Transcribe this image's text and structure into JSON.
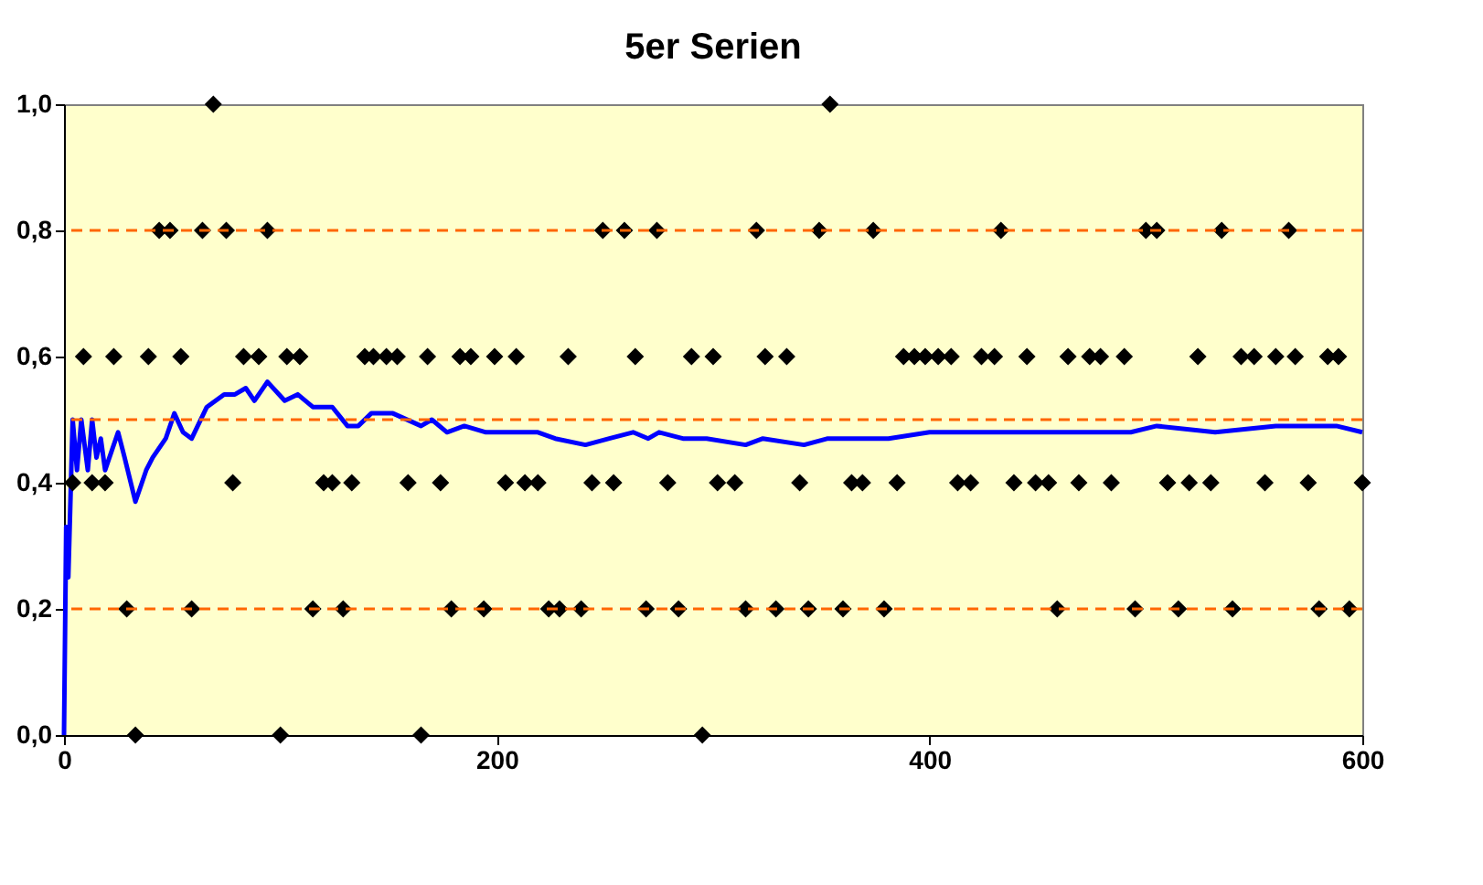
{
  "chart_data": {
    "type": "scatter",
    "title": "5er Serien",
    "xlim": [
      0,
      600
    ],
    "xticks": [
      0,
      200,
      400,
      600
    ],
    "ylim": [
      0,
      1
    ],
    "yticks": [
      {
        "value": 0,
        "label": "0,0"
      },
      {
        "value": 0.2,
        "label": "0,2"
      },
      {
        "value": 0.4,
        "label": "0,4"
      },
      {
        "value": 0.6,
        "label": "0,6"
      },
      {
        "value": 0.8,
        "label": "0,8"
      },
      {
        "value": 1,
        "label": "1,0"
      }
    ],
    "grid": false,
    "ref_lines": [
      {
        "axis": "y",
        "value": 0.2,
        "color": "#ff6600",
        "line_style": "dashed"
      },
      {
        "axis": "y",
        "value": 0.5,
        "color": "#ff6600",
        "line_style": "dashed"
      },
      {
        "axis": "y",
        "value": 0.8,
        "color": "#ff6600",
        "line_style": "dashed"
      }
    ],
    "series": [
      {
        "color": "#000000",
        "marker": "diamond",
        "x": [
          69,
          354,
          44,
          49,
          64,
          75,
          94,
          249,
          259,
          274,
          320,
          349,
          374,
          433,
          500,
          505,
          535,
          566,
          9,
          23,
          39,
          54,
          83,
          90,
          103,
          109,
          139,
          143,
          149,
          154,
          168,
          183,
          188,
          199,
          209,
          233,
          264,
          290,
          300,
          324,
          334,
          388,
          393,
          398,
          404,
          410,
          424,
          430,
          445,
          464,
          474,
          479,
          490,
          524,
          544,
          550,
          560,
          569,
          584,
          589,
          4,
          13,
          19,
          78,
          120,
          124,
          133,
          159,
          174,
          204,
          213,
          219,
          244,
          254,
          279,
          302,
          310,
          340,
          364,
          369,
          385,
          413,
          419,
          439,
          449,
          455,
          469,
          484,
          510,
          520,
          530,
          555,
          575,
          600,
          29,
          59,
          115,
          129,
          179,
          194,
          224,
          229,
          239,
          269,
          284,
          315,
          329,
          344,
          360,
          379,
          459,
          495,
          515,
          540,
          580,
          594,
          33,
          100,
          165,
          295
        ],
        "values": [
          1,
          1,
          0.8,
          0.8,
          0.8,
          0.8,
          0.8,
          0.8,
          0.8,
          0.8,
          0.8,
          0.8,
          0.8,
          0.8,
          0.8,
          0.8,
          0.8,
          0.8,
          0.6,
          0.6,
          0.6,
          0.6,
          0.6,
          0.6,
          0.6,
          0.6,
          0.6,
          0.6,
          0.6,
          0.6,
          0.6,
          0.6,
          0.6,
          0.6,
          0.6,
          0.6,
          0.6,
          0.6,
          0.6,
          0.6,
          0.6,
          0.6,
          0.6,
          0.6,
          0.6,
          0.6,
          0.6,
          0.6,
          0.6,
          0.6,
          0.6,
          0.6,
          0.6,
          0.6,
          0.6,
          0.6,
          0.6,
          0.6,
          0.6,
          0.6,
          0.4,
          0.4,
          0.4,
          0.4,
          0.4,
          0.4,
          0.4,
          0.4,
          0.4,
          0.4,
          0.4,
          0.4,
          0.4,
          0.4,
          0.4,
          0.4,
          0.4,
          0.4,
          0.4,
          0.4,
          0.4,
          0.4,
          0.4,
          0.4,
          0.4,
          0.4,
          0.4,
          0.4,
          0.4,
          0.4,
          0.4,
          0.4,
          0.4,
          0.4,
          0.2,
          0.2,
          0.2,
          0.2,
          0.2,
          0.2,
          0.2,
          0.2,
          0.2,
          0.2,
          0.2,
          0.2,
          0.2,
          0.2,
          0.2,
          0.2,
          0.2,
          0.2,
          0.2,
          0.2,
          0.2,
          0.2,
          0,
          0,
          0,
          0
        ]
      },
      {
        "type": "line",
        "color": "#0000ff",
        "marker": "none",
        "line_style": "solid",
        "x": [
          0,
          1,
          2,
          4,
          6,
          8,
          11,
          13,
          15,
          17,
          19,
          21,
          25,
          28,
          33,
          38,
          41,
          47,
          51,
          55,
          59,
          66,
          74,
          79,
          84,
          88,
          94,
          102,
          108,
          115,
          124,
          131,
          136,
          142,
          152,
          165,
          170,
          177,
          185,
          195,
          211,
          219,
          227,
          241,
          252,
          263,
          270,
          275,
          286,
          297,
          315,
          323,
          342,
          353,
          381,
          400,
          428,
          431,
          452,
          460,
          476,
          493,
          505,
          532,
          560,
          568,
          588,
          600
        ],
        "values": [
          0,
          0.33,
          0.25,
          0.5,
          0.42,
          0.5,
          0.42,
          0.5,
          0.44,
          0.47,
          0.42,
          0.44,
          0.48,
          0.44,
          0.37,
          0.42,
          0.44,
          0.47,
          0.51,
          0.48,
          0.47,
          0.52,
          0.54,
          0.54,
          0.55,
          0.53,
          0.56,
          0.53,
          0.54,
          0.52,
          0.52,
          0.49,
          0.49,
          0.51,
          0.51,
          0.49,
          0.5,
          0.48,
          0.49,
          0.48,
          0.48,
          0.48,
          0.47,
          0.46,
          0.47,
          0.48,
          0.47,
          0.48,
          0.47,
          0.47,
          0.46,
          0.47,
          0.46,
          0.47,
          0.47,
          0.48,
          0.48,
          0.48,
          0.48,
          0.48,
          0.48,
          0.48,
          0.49,
          0.48,
          0.49,
          0.49,
          0.49,
          0.48
        ]
      }
    ]
  }
}
